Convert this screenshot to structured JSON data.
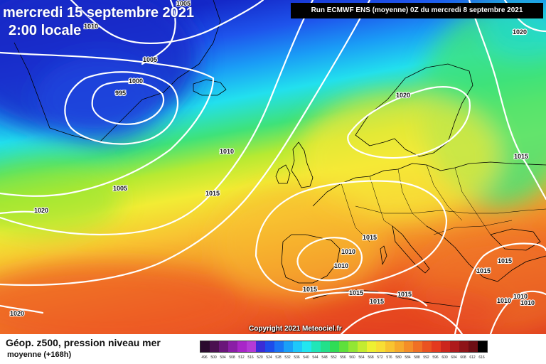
{
  "title": {
    "date": "mercredi 15 septembre 2021",
    "time": "2:00 locale"
  },
  "run_info": "Run ECMWF ENS (moyenne) 0Z du mercredi 8 septembre 2021",
  "copyright": "Copyright 2021 Meteociel.fr",
  "caption": {
    "line1": "Géop. z500, pression niveau mer",
    "line2": "moyenne  (+168h)"
  },
  "legend": {
    "values": [
      496,
      500,
      504,
      508,
      512,
      516,
      520,
      524,
      528,
      532,
      536,
      540,
      544,
      548,
      552,
      556,
      560,
      564,
      568,
      572,
      576,
      580,
      584,
      588,
      592,
      596,
      600,
      604,
      608,
      612,
      616
    ],
    "colors": [
      "#2a0a2e",
      "#4a1050",
      "#6a167a",
      "#8a1ea6",
      "#a826c8",
      "#b43ad6",
      "#3a2cd6",
      "#1e4cea",
      "#1a74f4",
      "#1aa0f8",
      "#1ec8fa",
      "#22e6f0",
      "#20e6b8",
      "#22e08a",
      "#30dc56",
      "#5ee03c",
      "#92e634",
      "#c4ec30",
      "#eef032",
      "#f8de34",
      "#f8c430",
      "#f6aa2c",
      "#f48e28",
      "#f07024",
      "#ea5220",
      "#e43a1e",
      "#cc261c",
      "#ae1a1c",
      "#8e1418",
      "#6e0e14",
      "#000000"
    ]
  },
  "isobars": [
    {
      "value": "1005",
      "label": "1005"
    },
    {
      "value": "1010",
      "label": "1010"
    },
    {
      "value": "1005",
      "label": "1005"
    },
    {
      "value": "1000",
      "label": "1000"
    },
    {
      "value": "995",
      "label": "995"
    },
    {
      "value": "1010",
      "label": "1010"
    },
    {
      "value": "1005",
      "label": "1005"
    },
    {
      "value": "1015",
      "label": "1015"
    },
    {
      "value": "1020",
      "label": "1020"
    },
    {
      "value": "1020",
      "label": "1020"
    },
    {
      "value": "1020",
      "label": "1020"
    },
    {
      "value": "1015",
      "label": "1015"
    },
    {
      "value": "1015",
      "label": "1015"
    },
    {
      "value": "1010",
      "label": "1010"
    },
    {
      "value": "1010",
      "label": "1010"
    },
    {
      "value": "1015",
      "label": "1015"
    },
    {
      "value": "1015",
      "label": "1015"
    },
    {
      "value": "1015",
      "label": "1015"
    },
    {
      "value": "1015",
      "label": "1015"
    },
    {
      "value": "1015",
      "label": "1015"
    },
    {
      "value": "1015",
      "label": "1015"
    },
    {
      "value": "1010",
      "label": "1010"
    },
    {
      "value": "1010",
      "label": "1010"
    },
    {
      "value": "1010",
      "label": "1010"
    },
    {
      "value": "1020",
      "label": "1020"
    }
  ]
}
